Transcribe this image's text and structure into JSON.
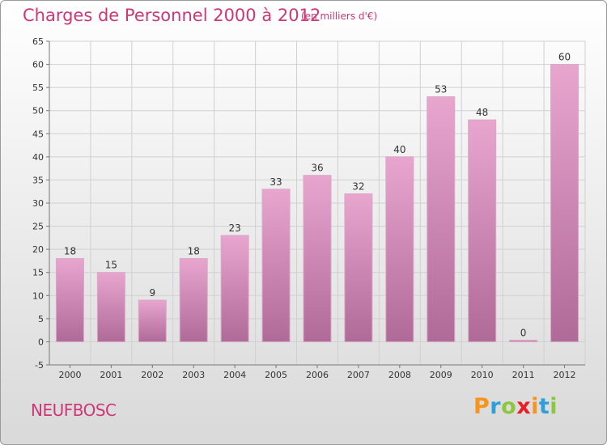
{
  "header": {
    "title": "Charges de Personnel 2000 à 2012",
    "subtitle": "(en milliers d'€)"
  },
  "footer": {
    "commune": "NEUFBOSC",
    "logo": {
      "text": "Proxiti",
      "letters": [
        {
          "char": "P",
          "color": "#f7941d"
        },
        {
          "char": "r",
          "color": "#2e9fd8"
        },
        {
          "char": "o",
          "color": "#8dc63f"
        },
        {
          "char": "x",
          "color": "#ed1c24"
        },
        {
          "char": "i",
          "color": "#f7941d"
        },
        {
          "char": "t",
          "color": "#2e9fd8"
        },
        {
          "char": "i",
          "color": "#8dc63f"
        }
      ]
    }
  },
  "colors": {
    "accent": "#cc3877",
    "bar_top": "#e8a6cf",
    "bar_bottom": "#b06a98",
    "grid": "#d0d0d0"
  },
  "chart_data": {
    "type": "bar",
    "title": "Charges de Personnel 2000 à 2012",
    "subtitle": "(en milliers d'€)",
    "categories": [
      "2000",
      "2001",
      "2002",
      "2003",
      "2004",
      "2005",
      "2006",
      "2007",
      "2008",
      "2009",
      "2010",
      "2011",
      "2012"
    ],
    "values": [
      18,
      15,
      9,
      18,
      23,
      33,
      36,
      32,
      40,
      53,
      48,
      0,
      60
    ],
    "ylim": [
      -5,
      65
    ],
    "yticks": [
      -5,
      0,
      5,
      10,
      15,
      20,
      25,
      30,
      35,
      40,
      45,
      50,
      55,
      60,
      65
    ],
    "grid": true,
    "data_labels": true,
    "xlabel": "",
    "ylabel": ""
  }
}
